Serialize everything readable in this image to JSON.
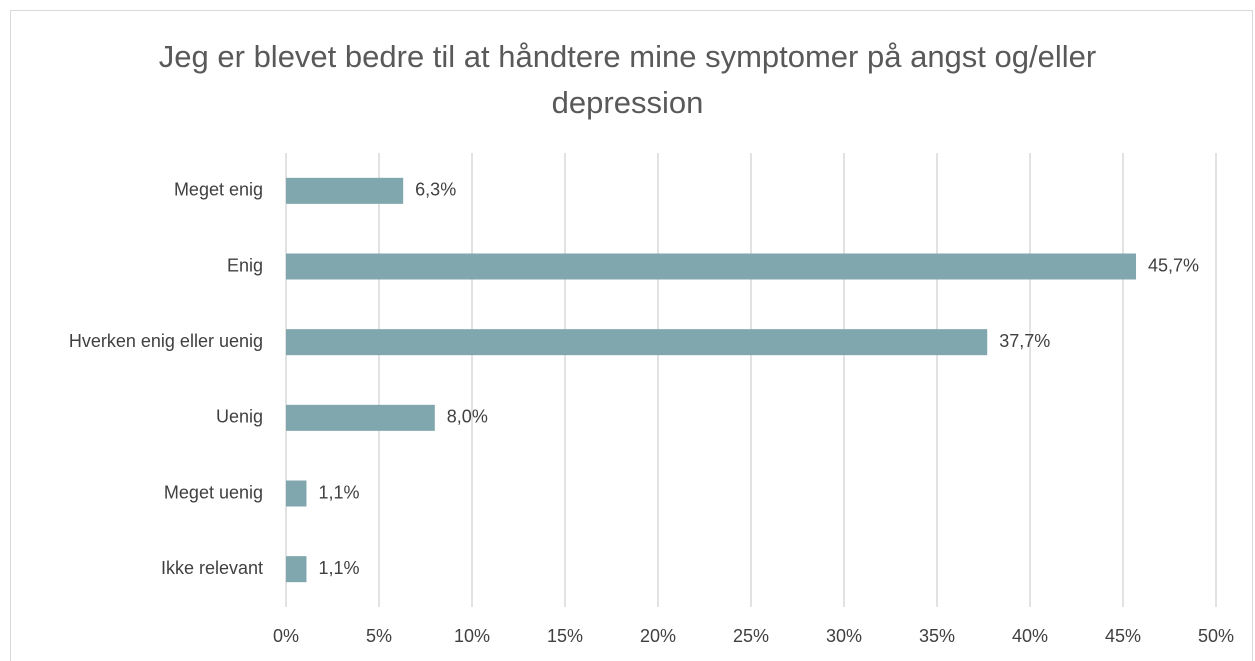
{
  "chart_data": {
    "type": "bar",
    "orientation": "horizontal",
    "title": "Jeg er blevet bedre til at håndtere mine symptomer på angst og/eller depression",
    "categories": [
      "Meget enig",
      "Enig",
      "Hverken enig eller uenig",
      "Uenig",
      "Meget uenig",
      "Ikke relevant"
    ],
    "values": [
      6.3,
      45.7,
      37.7,
      8.0,
      1.1,
      1.1
    ],
    "value_labels": [
      "6,3%",
      "45,7%",
      "37,7%",
      "8,0%",
      "1,1%",
      "1,1%"
    ],
    "color": "#7fa7ad",
    "xlim": [
      0,
      50
    ],
    "xticks": [
      {
        "value": 0,
        "label": "0%"
      },
      {
        "value": 5,
        "label": "5%"
      },
      {
        "value": 10,
        "label": "10%"
      },
      {
        "value": 15,
        "label": "15%"
      },
      {
        "value": 20,
        "label": "20%"
      },
      {
        "value": 25,
        "label": "25%"
      },
      {
        "value": 30,
        "label": "30%"
      },
      {
        "value": 35,
        "label": "35%"
      },
      {
        "value": 40,
        "label": "40%"
      },
      {
        "value": 45,
        "label": "45%"
      },
      {
        "value": 50,
        "label": "50%"
      }
    ],
    "grid": true
  }
}
